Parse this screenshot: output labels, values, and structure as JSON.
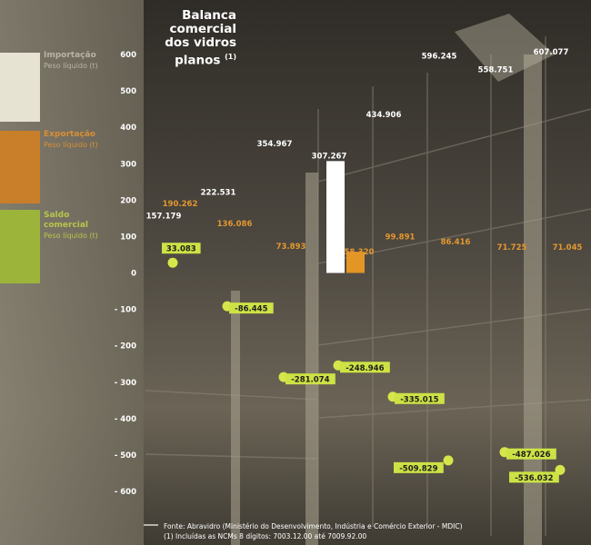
{
  "title": {
    "line1": "Balanca",
    "line2": "comercial",
    "line3": "dos vidros",
    "line4": "planos",
    "note": "(1)"
  },
  "legend": [
    {
      "name": "Importação",
      "unit": "Peso líquido (t)",
      "color": "#e6e3d2",
      "text_color": "#b8b4a2"
    },
    {
      "name": "Exportação",
      "unit": "Peso líquido (t)",
      "color": "#c97f2a",
      "text_color": "#d88f35"
    },
    {
      "name": "Saldo comercial",
      "unit": "Peso líquido (t)",
      "color": "#9cb43a",
      "text_color": "#b6c74a"
    }
  ],
  "colors": {
    "import_label": "#ffffff",
    "export_label": "#e3982f",
    "saldo_dot": "#d6e64a",
    "saldo_label_bg": "#cde245",
    "axis_text": "#ffffff",
    "import_bar": "#ffffff",
    "export_bar": "#e39526"
  },
  "chart_data": {
    "type": "line",
    "ylim": [
      -600,
      600
    ],
    "yticks": [
      600,
      500,
      400,
      300,
      200,
      100,
      0,
      -100,
      -200,
      -300,
      -400,
      -500,
      -600
    ],
    "ytick_labels": [
      "600",
      "500",
      "400",
      "300",
      "200",
      "100",
      "0",
      "- 100",
      "- 200",
      "- 300",
      "- 400",
      "- 500",
      "- 600"
    ],
    "grid": false,
    "series": [
      {
        "name": "Importação",
        "values": [
          157.179,
          222.531,
          354.967,
          307.267,
          434.906,
          596.245,
          558.751,
          607.077
        ],
        "labels": [
          "157.179",
          "222.531",
          "354.967",
          "307.267",
          "434.906",
          "596.245",
          "558.751",
          "607.077"
        ]
      },
      {
        "name": "Exportação",
        "values": [
          190.262,
          136.086,
          73.893,
          58.32,
          99.891,
          86.416,
          71.725,
          71.045
        ],
        "labels": [
          "190.262",
          "136.086",
          "73.893",
          "58.320",
          "99.891",
          "86.416",
          "71.725",
          "71.045"
        ]
      },
      {
        "name": "Saldo comercial",
        "values": [
          33.083,
          -86.445,
          -281.074,
          -248.946,
          -335.015,
          -509.829,
          -487.026,
          -536.032
        ],
        "labels": [
          "33.083",
          "-86.445",
          "-281.074",
          "-248.946",
          "-335.015",
          "-509.829",
          "-487.026",
          "-536.032"
        ]
      }
    ],
    "highlight_bars": {
      "import": 307.267,
      "export": 58.32
    }
  },
  "footer": {
    "source": "Fonte: Abravidro (Ministério do Desenvolvimento, Indústria e Comércio Exterior - MDIC)",
    "note": "(1) Incluídas as NCMs 8 dígitos: 7003.12.00 até 7009.92.00"
  }
}
